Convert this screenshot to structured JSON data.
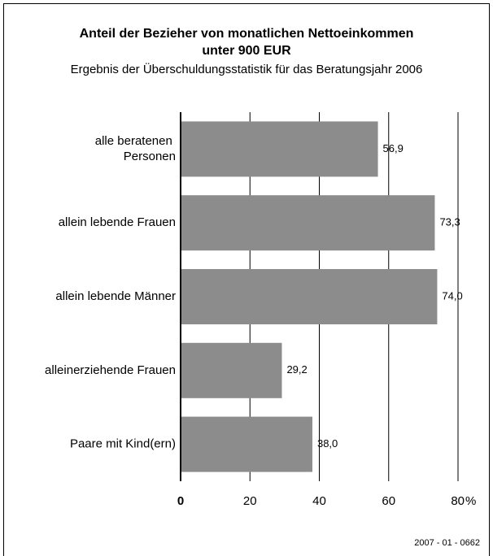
{
  "chart_data": {
    "type": "barh",
    "title": "Anteil der Bezieher  von monatlichen Nettoeinkommen",
    "title_line2": "unter 900 EUR",
    "subtitle": "Ergebnis der Überschuldungsstatistik für das Beratungsjahr 2006",
    "categories": [
      "alle beratenen\nPersonen",
      "allein lebende Frauen",
      "allein lebende Männer",
      "alleinerziehende Frauen",
      "Paare mit Kind(ern)"
    ],
    "values": [
      56.9,
      73.3,
      74.0,
      29.2,
      38.0
    ],
    "value_labels": [
      "56,9",
      "73,3",
      "74,0",
      "29,2",
      "38,0"
    ],
    "color": "#8c8c8c",
    "xlim": [
      0,
      80
    ],
    "xticks": [
      0,
      20,
      40,
      60,
      80
    ],
    "x_unit": "%",
    "grid": true,
    "footnote": "2007 - 01 - 0662"
  }
}
